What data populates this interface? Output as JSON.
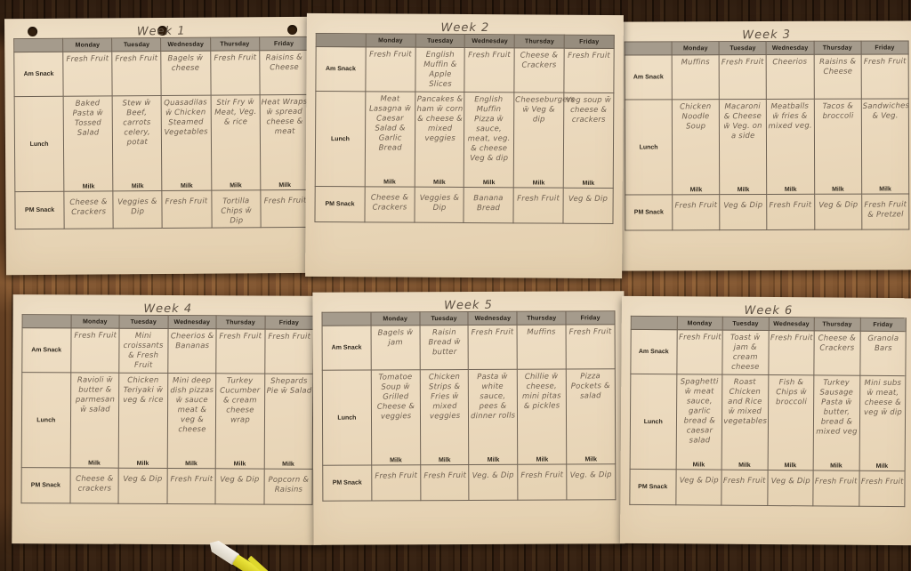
{
  "days": [
    "Monday",
    "Tuesday",
    "Wednesday",
    "Thursday",
    "Friday"
  ],
  "row_labels": {
    "am": "Am Snack",
    "lunch": "Lunch",
    "pm": "PM Snack"
  },
  "milk_label": "Milk",
  "weeks": [
    {
      "title": "Week 1",
      "am": [
        "Fresh Fruit",
        "Fresh Fruit",
        "Bagels w̄ cheese",
        "Fresh Fruit",
        "Raisins & Cheese"
      ],
      "lunch": [
        "Baked Pasta w̄ Tossed Salad",
        "Stew w̄ Beef, carrots celery, potat",
        "Quasadilas w̄ Chicken Steamed Vegetables",
        "Stir Fry w̄ Meat, Veg. & rice",
        "Heat Wraps w̄ spread cheese & meat"
      ],
      "pm": [
        "Cheese & Crackers",
        "Veggies & Dip",
        "Fresh Fruit",
        "Tortilla Chips w̄ Dip",
        "Fresh Fruit"
      ]
    },
    {
      "title": "Week 2",
      "am": [
        "Fresh Fruit",
        "English Muffin & Apple Slices",
        "Fresh Fruit",
        "Cheese & Crackers",
        "Fresh Fruit"
      ],
      "lunch": [
        "Meat Lasagna w̄ Caesar Salad & Garlic Bread",
        "Pancakes & ham w̄ corn & cheese & mixed veggies",
        "English Muffin Pizza w̄ sauce, meat, veg. & cheese Veg & dip",
        "Cheeseburgers w̄ Veg & dip",
        "Veg soup w̄ cheese & crackers"
      ],
      "pm": [
        "Cheese & Crackers",
        "Veggies & Dip",
        "Banana Bread",
        "Fresh Fruit",
        "Veg & Dip"
      ]
    },
    {
      "title": "Week 3",
      "am": [
        "Muffins",
        "Fresh Fruit",
        "Cheerios",
        "Raisins & Cheese",
        "Fresh Fruit"
      ],
      "lunch": [
        "Chicken Noodle Soup",
        "Macaroni & Cheese w̄ Veg. on a side",
        "Meatballs w̄ fries & mixed veg.",
        "Tacos & broccoli",
        "Sandwiches & Veg."
      ],
      "pm": [
        "Fresh Fruit",
        "Veg & Dip",
        "Fresh Fruit",
        "Veg & Dip",
        "Fresh Fruit & Pretzel"
      ]
    },
    {
      "title": "Week 4",
      "am": [
        "Fresh Fruit",
        "Mini croissants & Fresh Fruit",
        "Cheerios & Bananas",
        "Fresh Fruit",
        "Fresh Fruit"
      ],
      "lunch": [
        "Ravioli w̄ butter & parmesan w̄ salad",
        "Chicken Teriyaki w̄ veg & rice",
        "Mini deep dish pizzas w̄ sauce meat & veg & cheese",
        "Turkey Cucumber & cream cheese wrap",
        "Shepards Pie w̄ Salad"
      ],
      "pm": [
        "Cheese & crackers",
        "Veg & Dip",
        "Fresh Fruit",
        "Veg & Dip",
        "Popcorn & Raisins"
      ]
    },
    {
      "title": "Week 5",
      "am": [
        "Bagels w̄ jam",
        "Raisin Bread w̄ butter",
        "Fresh Fruit",
        "Muffins",
        "Fresh Fruit"
      ],
      "lunch": [
        "Tomatoe Soup w̄ Grilled Cheese & veggies",
        "Chicken Strips & Fries w̄ mixed veggies",
        "Pasta w̄ white sauce, pees & dinner rolls",
        "Chillie w̄ cheese, mini pitas & pickles",
        "Pizza Pockets & salad"
      ],
      "pm": [
        "Fresh Fruit",
        "Fresh Fruit",
        "Veg. & Dip",
        "Fresh Fruit",
        "Veg. & Dip"
      ]
    },
    {
      "title": "Week 6",
      "am": [
        "Fresh Fruit",
        "Toast w̄ jam & cream cheese",
        "Fresh Fruit",
        "Cheese & Crackers",
        "Granola Bars"
      ],
      "lunch": [
        "Spaghetti w̄ meat sauce, garlic bread & caesar salad",
        "Roast Chicken and Rice w̄ mixed vegetables",
        "Fish & Chips w̄ broccoli",
        "Turkey Sausage Pasta w̄ butter, bread & mixed veg",
        "Mini subs w̄ meat, cheese & veg w̄ dip"
      ],
      "pm": [
        "Veg & Dip",
        "Fresh Fruit",
        "Veg & Dip",
        "Fresh Fruit",
        "Fresh Fruit"
      ]
    }
  ],
  "colors": {
    "paper": "#ebd9bd",
    "header_cell": "#a59b8c",
    "handwriting_ink": "#6f6050",
    "printed_text": "#30291f",
    "table_border": "#6e6254",
    "wood_dark": "#2f1c0d",
    "wood_mid": "#654226",
    "wood_light": "#a57244",
    "highlighter_body": "#e6df33",
    "highlighter_cap": "#efe9dd"
  }
}
